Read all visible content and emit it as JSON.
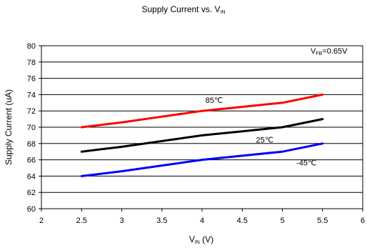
{
  "chart_data": {
    "type": "line",
    "title": "Supply Current vs. V",
    "title_sub": "IN",
    "xlabel": "V",
    "xlabel_sub": "IN",
    "xlabel_unit": " (V)",
    "ylabel": "Supply Current (uA)",
    "condition": {
      "prefix": "V",
      "sub": "FB",
      "suffix": "=0.65V"
    },
    "xlim": [
      2,
      6
    ],
    "ylim": [
      60,
      80
    ],
    "xticks": [
      2,
      2.5,
      3,
      3.5,
      4,
      4.5,
      5,
      5.5,
      6
    ],
    "yticks": [
      60,
      62,
      64,
      66,
      68,
      70,
      72,
      74,
      76,
      78,
      80
    ],
    "grid": "horizontal",
    "series": [
      {
        "name": "85℃",
        "color": "#ff0000",
        "x": [
          2.5,
          3.0,
          3.5,
          4.0,
          4.5,
          5.0,
          5.5
        ],
        "y": [
          70.0,
          70.6,
          71.3,
          72.0,
          72.5,
          73.0,
          74.0
        ]
      },
      {
        "name": "25℃",
        "color": "#000000",
        "x": [
          2.5,
          3.0,
          3.5,
          4.0,
          4.5,
          5.0,
          5.5
        ],
        "y": [
          67.0,
          67.6,
          68.3,
          69.0,
          69.5,
          70.0,
          71.0
        ]
      },
      {
        "name": "-45℃",
        "color": "#0000ff",
        "x": [
          2.5,
          3.0,
          3.5,
          4.0,
          4.5,
          5.0,
          5.5
        ],
        "y": [
          64.0,
          64.6,
          65.3,
          66.0,
          66.5,
          67.0,
          68.0
        ]
      }
    ]
  }
}
